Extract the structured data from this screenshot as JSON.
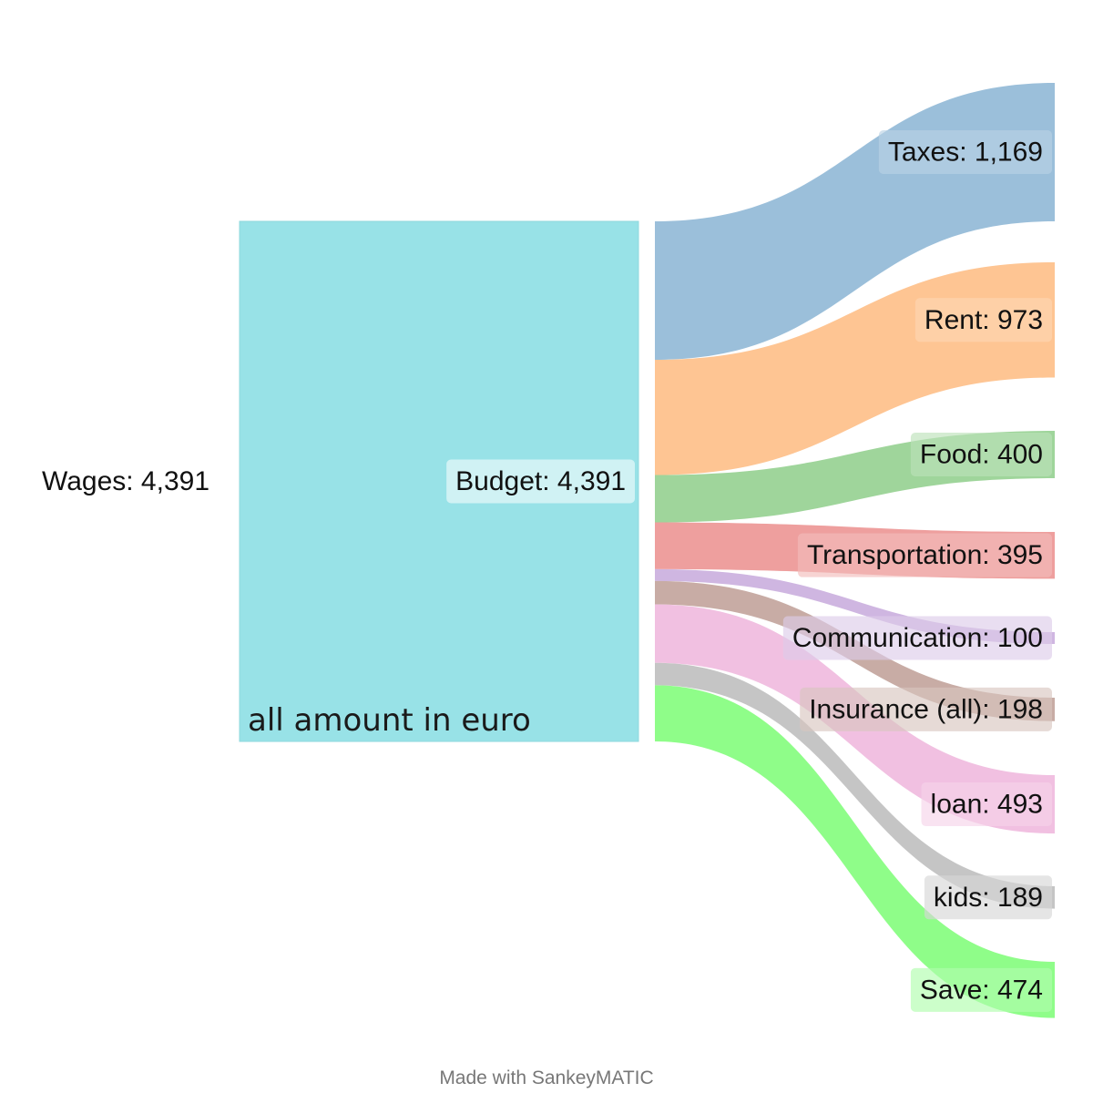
{
  "chart_data": {
    "type": "sankey",
    "units_note": "all amount in euro",
    "credit": "Made with SankeyMATIC",
    "nodes": [
      {
        "id": "wages",
        "name": "Wages",
        "value": 4391,
        "label": "Wages: 4,391",
        "color": "#ffffff"
      },
      {
        "id": "budget",
        "name": "Budget",
        "value": 4391,
        "label": "Budget: 4,391",
        "color": "#98e2e7"
      },
      {
        "id": "taxes",
        "name": "Taxes",
        "value": 1169,
        "label": "Taxes: 1,169",
        "color": "#9bbfda"
      },
      {
        "id": "rent",
        "name": "Rent",
        "value": 973,
        "label": "Rent: 973",
        "color": "#fec593"
      },
      {
        "id": "food",
        "name": "Food",
        "value": 400,
        "label": "Food: 400",
        "color": "#9fd59b"
      },
      {
        "id": "transportation",
        "name": "Transportation",
        "value": 395,
        "label": "Transportation: 395",
        "color": "#ee9f9e"
      },
      {
        "id": "communication",
        "name": "Communication",
        "value": 100,
        "label": "Communication: 100",
        "color": "#cfb6e1"
      },
      {
        "id": "insurance",
        "name": "Insurance (all)",
        "value": 198,
        "label": "Insurance (all): 198",
        "color": "#c8aca5"
      },
      {
        "id": "loan",
        "name": "loan",
        "value": 493,
        "label": "loan: 493",
        "color": "#f1c0e1"
      },
      {
        "id": "kids",
        "name": "kids",
        "value": 189,
        "label": "kids: 189",
        "color": "#c5c5c5"
      },
      {
        "id": "save",
        "name": "Save",
        "value": 474,
        "label": "Save: 474",
        "color": "#8ffd89"
      }
    ],
    "flows": [
      {
        "source": "wages",
        "target": "budget",
        "value": 4391
      },
      {
        "source": "budget",
        "target": "taxes",
        "value": 1169
      },
      {
        "source": "budget",
        "target": "rent",
        "value": 973
      },
      {
        "source": "budget",
        "target": "food",
        "value": 400
      },
      {
        "source": "budget",
        "target": "transportation",
        "value": 395
      },
      {
        "source": "budget",
        "target": "communication",
        "value": 100
      },
      {
        "source": "budget",
        "target": "insurance",
        "value": 198
      },
      {
        "source": "budget",
        "target": "loan",
        "value": 493
      },
      {
        "source": "budget",
        "target": "kids",
        "value": 189
      },
      {
        "source": "budget",
        "target": "save",
        "value": 474
      }
    ]
  }
}
